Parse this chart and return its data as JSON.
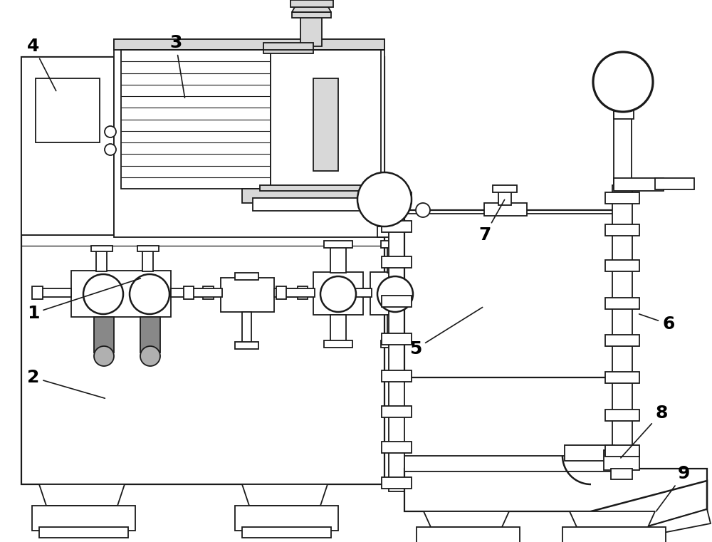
{
  "bg_color": "#ffffff",
  "line_color": "#1a1a1a",
  "lw": 1.3,
  "figsize": [
    10.0,
    7.61
  ],
  "gray_light": "#d8d8d8",
  "gray_med": "#b0b0b0",
  "gray_dark": "#888888"
}
